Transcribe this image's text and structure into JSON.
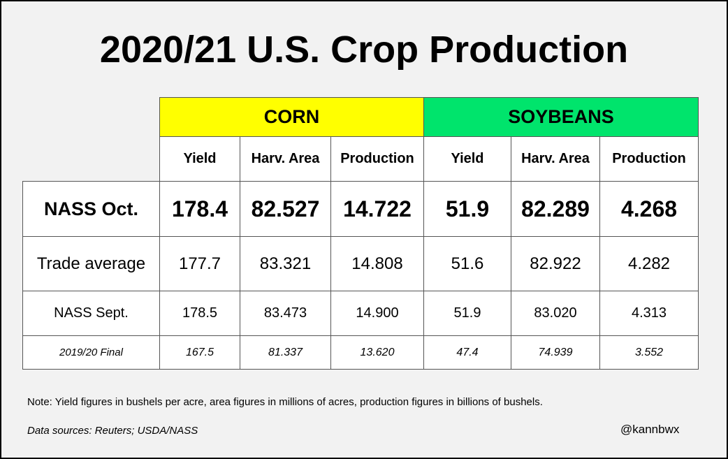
{
  "title": "2020/21 U.S. Crop Production",
  "table": {
    "groups": [
      {
        "label": "CORN",
        "color": "#ffff00"
      },
      {
        "label": "SOYBEANS",
        "color": "#00e46c"
      }
    ],
    "columns": [
      "Yield",
      "Harv. Area",
      "Production",
      "Yield",
      "Harv. Area",
      "Production"
    ],
    "rows": [
      {
        "label": "NASS Oct.",
        "values": [
          "178.4",
          "82.527",
          "14.722",
          "51.9",
          "82.289",
          "4.268"
        ]
      },
      {
        "label": "Trade average",
        "values": [
          "177.7",
          "83.321",
          "14.808",
          "51.6",
          "82.922",
          "4.282"
        ]
      },
      {
        "label": "NASS Sept.",
        "values": [
          "178.5",
          "83.473",
          "14.900",
          "51.9",
          "83.020",
          "4.313"
        ]
      },
      {
        "label": "2019/20 Final",
        "values": [
          "167.5",
          "81.337",
          "13.620",
          "47.4",
          "74.939",
          "3.552"
        ]
      }
    ]
  },
  "note": "Note: Yield figures in bushels per acre, area figures in millions of acres, production figures in billions of bushels.",
  "source": "Data sources: Reuters; USDA/NASS",
  "handle": "@kannbwx"
}
